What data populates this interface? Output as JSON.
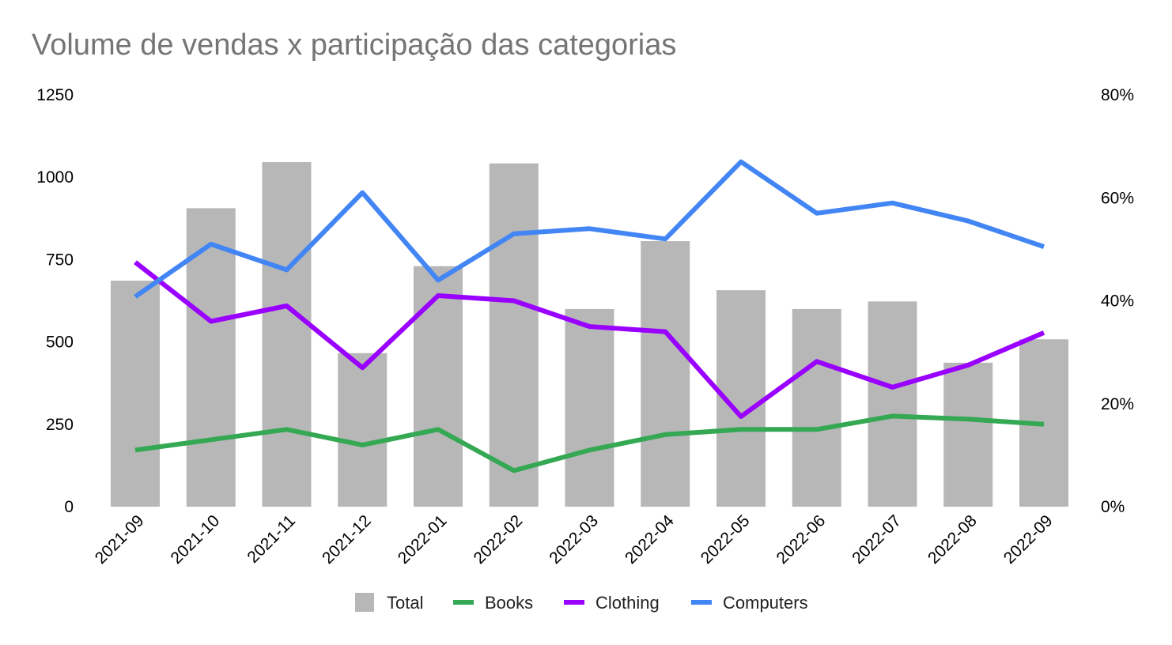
{
  "chart_data": {
    "type": "bar+line",
    "title": "Volume de vendas x participação das categorias",
    "categories": [
      "2021-09",
      "2021-10",
      "2021-11",
      "2021-12",
      "2022-01",
      "2022-02",
      "2022-03",
      "2022-04",
      "2022-05",
      "2022-06",
      "2022-07",
      "2022-08",
      "2022-09"
    ],
    "left_axis": {
      "range": [
        0,
        1250
      ],
      "ticks": [
        "0",
        "250",
        "500",
        "750",
        "1000",
        "1250"
      ]
    },
    "right_axis": {
      "range": [
        0,
        80
      ],
      "ticks": [
        "0%",
        "20%",
        "40%",
        "60%",
        "80%"
      ]
    },
    "bar_series": {
      "name": "Total",
      "color": "#b7b7b7",
      "axis": "left",
      "values": [
        686,
        906,
        1046,
        466,
        730,
        1042,
        600,
        806,
        657,
        600,
        623,
        437,
        508
      ]
    },
    "line_series": [
      {
        "name": "Books",
        "color": "#34a853",
        "axis": "right",
        "values": [
          11,
          13,
          15,
          12,
          15,
          7,
          11,
          14,
          15,
          15,
          17.6,
          17,
          16
        ]
      },
      {
        "name": "Clothing",
        "color": "#9900ff",
        "axis": "right",
        "values": [
          47.5,
          36,
          39,
          27,
          41,
          40,
          35,
          34,
          17.5,
          28.2,
          23.2,
          27.5,
          33.8
        ]
      },
      {
        "name": "Computers",
        "color": "#4285f4",
        "axis": "right",
        "values": [
          40.8,
          51,
          46,
          61,
          44,
          53,
          54,
          52,
          67,
          57,
          59,
          55.5,
          50.5
        ]
      }
    ],
    "legend_position": "bottom",
    "grid": false
  }
}
